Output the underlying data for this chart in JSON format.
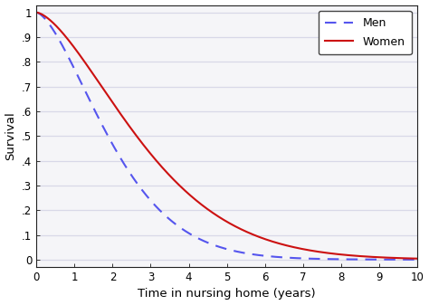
{
  "title": "",
  "xlabel": "Time in nursing home (years)",
  "ylabel": "Survival",
  "xlim": [
    0,
    10
  ],
  "ylim": [
    -0.03,
    1.03
  ],
  "xticks": [
    0,
    1,
    2,
    3,
    4,
    5,
    6,
    7,
    8,
    9,
    10
  ],
  "yticks": [
    0,
    0.1,
    0.2,
    0.3,
    0.4,
    0.5,
    0.6,
    0.7,
    0.8,
    0.9,
    1.0
  ],
  "ytick_labels": [
    "0",
    ".1",
    ".2",
    ".3",
    ".4",
    ".5",
    ".6",
    ".7",
    ".8",
    ".9",
    "1"
  ],
  "men_color": "#5555ee",
  "women_color": "#cc1111",
  "legend_labels": [
    "Men",
    "Women"
  ],
  "plot_bg_color": "#f5f5f8",
  "fig_bg_color": "#ffffff",
  "grid_color": "#d8d8e8",
  "men_lambda": 0.42,
  "women_lambda": 0.3,
  "men_shape": 1.55,
  "women_shape": 1.55
}
